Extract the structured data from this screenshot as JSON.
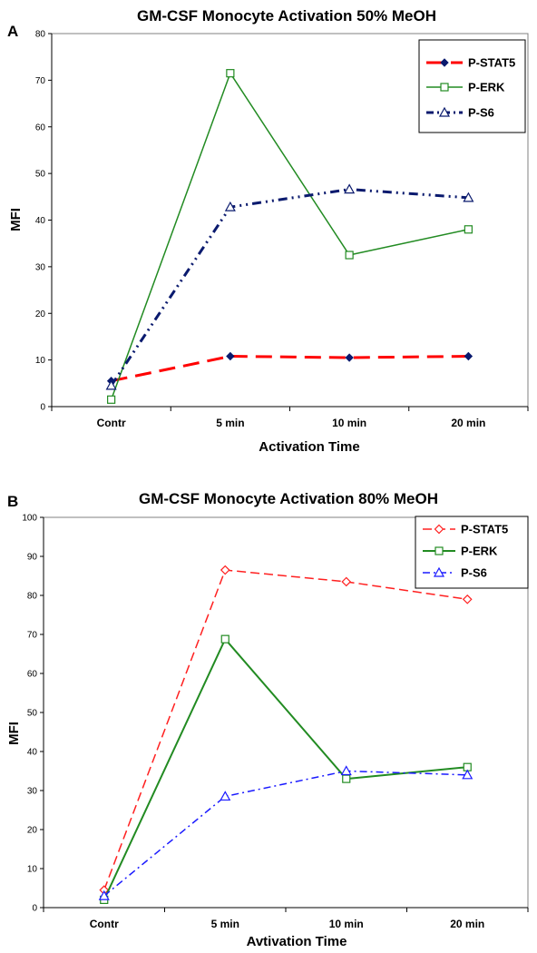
{
  "chart_data": [
    {
      "type": "line",
      "panel_letter": "A",
      "title": "GM-CSF Monocyte Activation 50% MeOH",
      "xlabel": "Activation Time",
      "ylabel": "MFI",
      "categories": [
        "Contr",
        "5 min",
        "10 min",
        "20 min"
      ],
      "ylim": [
        0,
        80
      ],
      "yticks": [
        0,
        10,
        20,
        30,
        40,
        50,
        60,
        70,
        80
      ],
      "grid": false,
      "legend": "top-right",
      "series": [
        {
          "name": "P-STAT5",
          "values": [
            5.5,
            10.8,
            10.5,
            10.8
          ],
          "color": "#ff0000",
          "dash": "long-dash",
          "marker": "diamond-filled"
        },
        {
          "name": "P-ERK",
          "values": [
            1.5,
            71.5,
            32.5,
            38.0
          ],
          "color": "#228b22",
          "dash": "solid",
          "marker": "square-open"
        },
        {
          "name": "P-S6",
          "values": [
            4.5,
            42.8,
            46.6,
            44.8
          ],
          "color": "#0a1a6e",
          "dash": "dash-dot-dot",
          "marker": "triangle-open"
        }
      ]
    },
    {
      "type": "line",
      "panel_letter": "B",
      "title": "GM-CSF Monocyte Activation 80% MeOH",
      "xlabel": "Avtivation Time",
      "ylabel": "MFI",
      "categories": [
        "Contr",
        "5 min",
        "10 min",
        "20 min"
      ],
      "ylim": [
        0,
        100
      ],
      "yticks": [
        0,
        10,
        20,
        30,
        40,
        50,
        60,
        70,
        80,
        90,
        100
      ],
      "grid": false,
      "legend": "top-right",
      "series": [
        {
          "name": "P-STAT5",
          "values": [
            4.5,
            86.5,
            83.5,
            79.0
          ],
          "color": "#ff2020",
          "dash": "dashed",
          "marker": "diamond-open"
        },
        {
          "name": "P-ERK",
          "values": [
            2.0,
            68.8,
            33.0,
            36.0
          ],
          "color": "#228b22",
          "dash": "solid",
          "marker": "square-open"
        },
        {
          "name": "P-S6",
          "values": [
            3.0,
            28.5,
            35.0,
            34.0
          ],
          "color": "#1a1aff",
          "dash": "dash-dot",
          "marker": "triangle-open"
        }
      ]
    }
  ]
}
